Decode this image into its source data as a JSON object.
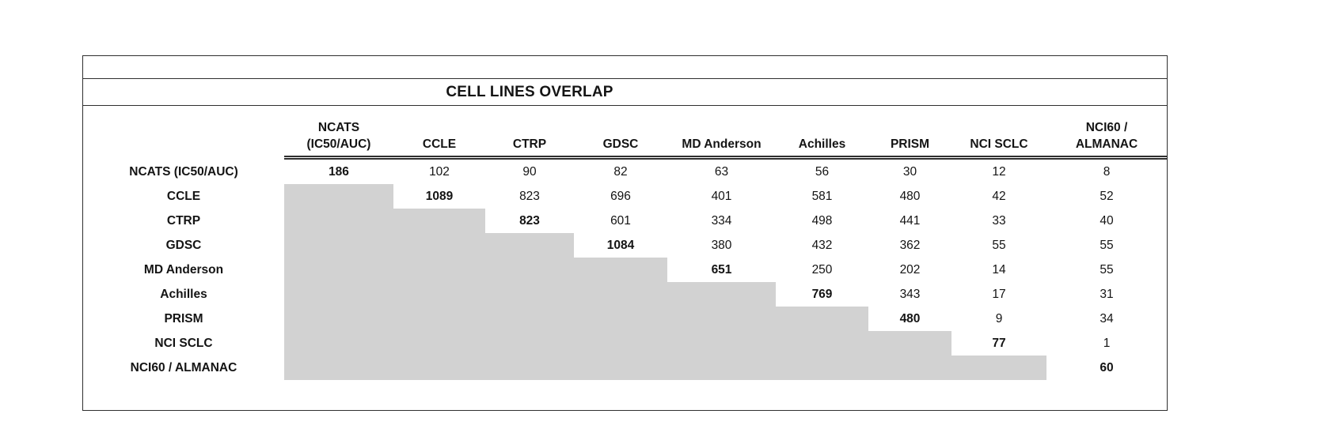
{
  "title": "CELL LINES OVERLAP",
  "column_headers": [
    "",
    "NCATS (IC50/AUC)",
    "CCLE",
    "CTRP",
    "GDSC",
    "MD Anderson",
    "Achilles",
    "PRISM",
    "NCI SCLC",
    "NCI60 / ALMANAC"
  ],
  "row_headers": [
    "NCATS (IC50/AUC)",
    "CCLE",
    "CTRP",
    "GDSC",
    "MD Anderson",
    "Achilles",
    "PRISM",
    "NCI SCLC",
    "NCI60 / ALMANAC"
  ],
  "chart_data": {
    "type": "table",
    "title": "CELL LINES OVERLAP",
    "categories": [
      "NCATS (IC50/AUC)",
      "CCLE",
      "CTRP",
      "GDSC",
      "MD Anderson",
      "Achilles",
      "PRISM",
      "NCI SCLC",
      "NCI60 / ALMANAC"
    ],
    "matrix": [
      [
        186,
        102,
        90,
        82,
        63,
        56,
        30,
        12,
        8
      ],
      [
        null,
        1089,
        823,
        696,
        401,
        581,
        480,
        42,
        52
      ],
      [
        null,
        null,
        823,
        601,
        334,
        498,
        441,
        33,
        40
      ],
      [
        null,
        null,
        null,
        1084,
        380,
        432,
        362,
        55,
        55
      ],
      [
        null,
        null,
        null,
        null,
        651,
        250,
        202,
        14,
        55
      ],
      [
        null,
        null,
        null,
        null,
        null,
        769,
        343,
        17,
        31
      ],
      [
        null,
        null,
        null,
        null,
        null,
        null,
        480,
        9,
        34
      ],
      [
        null,
        null,
        null,
        null,
        null,
        null,
        null,
        77,
        1
      ],
      [
        null,
        null,
        null,
        null,
        null,
        null,
        null,
        null,
        60
      ]
    ],
    "layout": {
      "upper_triangle_only": true,
      "diagonal_bold": true,
      "lower_triangle_shaded": true,
      "header_double_underline": true
    }
  },
  "colors": {
    "shaded_cell": "#d2d2d2",
    "border": "#2f2f2f",
    "text": "#141414",
    "background": "#ffffff"
  }
}
